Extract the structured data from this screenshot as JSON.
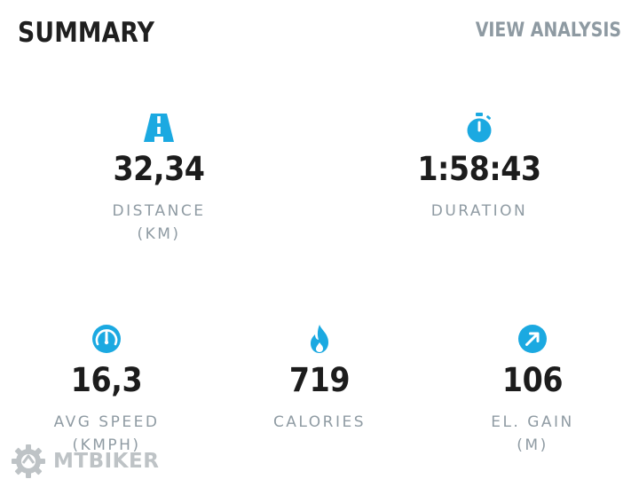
{
  "header": {
    "title": "SUMMARY",
    "view_analysis_label": "VIEW ANALYSIS"
  },
  "stats": {
    "distance": {
      "value": "32,34",
      "label": "DISTANCE",
      "unit": "(KM)",
      "icon": "road-icon"
    },
    "duration": {
      "value": "1:58:43",
      "label": "DURATION",
      "icon": "stopwatch-icon"
    },
    "avg_speed": {
      "value": "16,3",
      "label": "AVG SPEED",
      "unit": "(KMPH)",
      "icon": "speedometer-icon"
    },
    "calories": {
      "value": "719",
      "label": "CALORIES",
      "icon": "flame-icon"
    },
    "elevation_gain": {
      "value": "106",
      "label": "EL. GAIN",
      "unit": "(M)",
      "icon": "arrow-up-right-icon"
    }
  },
  "watermark": {
    "text": "MTBIKER",
    "icon": "gear-logo-icon"
  },
  "colors": {
    "accent": "#1ba9e1",
    "value_text": "#1c1c1c",
    "label_text": "#8f9ba3",
    "link_text": "#8e9aa2"
  }
}
